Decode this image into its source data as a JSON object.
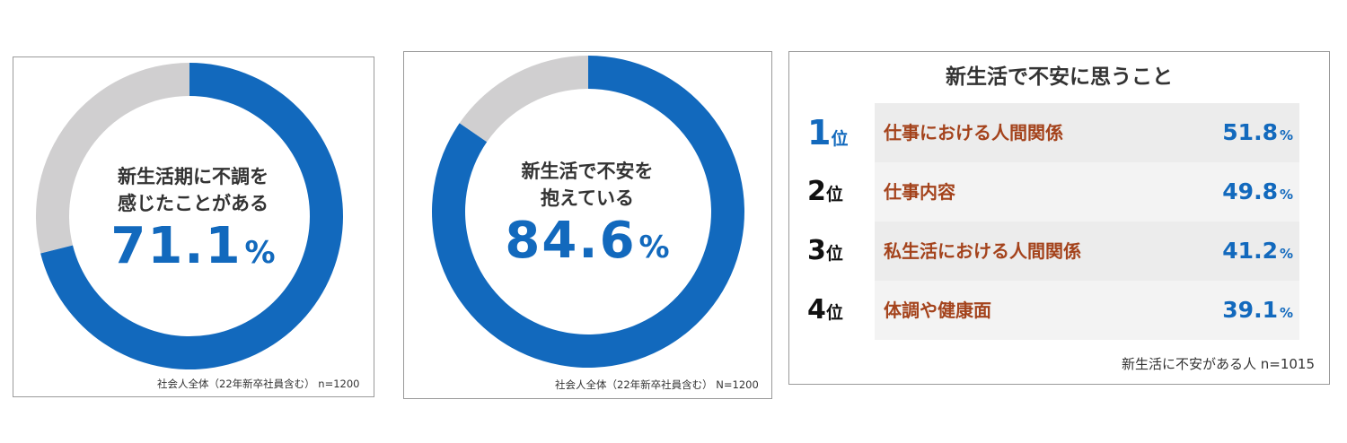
{
  "colors": {
    "accent": "#1269bd",
    "remainder": "#d0cfd0",
    "item_text": "#a4431c",
    "row_bg_even": "#ececec",
    "row_bg_odd": "#f3f3f3"
  },
  "chart_data": [
    {
      "type": "pie",
      "label_lines": [
        "新生活期に不調を",
        "感じたことがある"
      ],
      "value": "71.1",
      "unit": "%",
      "slices": [
        {
          "name": "感じたことがある",
          "value": 71.1
        },
        {
          "name": "",
          "value": 28.9
        }
      ],
      "note": "社会人全体（22年新卒社員含む） n=1200"
    },
    {
      "type": "pie",
      "label_lines": [
        "新生活で不安を",
        "抱えている"
      ],
      "value": "84.6",
      "unit": "%",
      "slices": [
        {
          "name": "抱えている",
          "value": 84.6
        },
        {
          "name": "",
          "value": 15.4
        }
      ],
      "note": "社会人全体（22年新卒社員含む） N=1200"
    },
    {
      "type": "table",
      "title": "新生活で不安に思うこと",
      "rank_suffix": "位",
      "unit": "%",
      "rows": [
        {
          "rank": "1",
          "item": "仕事における人間関係",
          "value": "51.8"
        },
        {
          "rank": "2",
          "item": "仕事内容",
          "value": "49.8"
        },
        {
          "rank": "3",
          "item": "私生活における人間関係",
          "value": "41.2"
        },
        {
          "rank": "4",
          "item": "体調や健康面",
          "value": "39.1"
        }
      ],
      "note": "新生活に不安がある人 n=1015"
    }
  ]
}
